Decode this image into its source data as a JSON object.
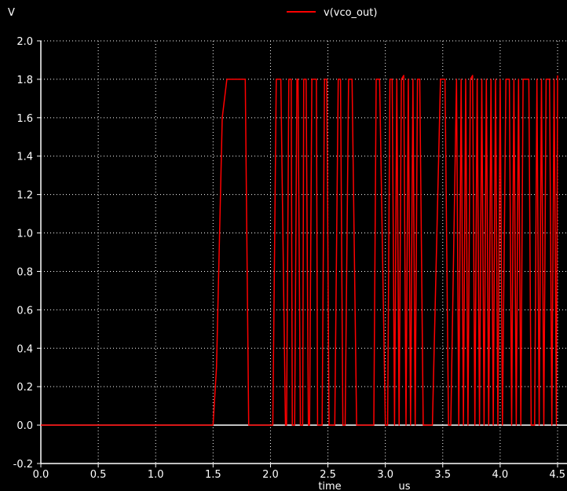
{
  "chart_data": {
    "type": "line",
    "y_unit": "V",
    "xlabel": "time",
    "x_unit": "us",
    "xlim": [
      0.0,
      4.5
    ],
    "ylim": [
      -0.2,
      2.0
    ],
    "x_ticks": [
      "0.0",
      "0.5",
      "1.0",
      "1.5",
      "2.0",
      "2.5",
      "3.0",
      "3.5",
      "4.0",
      "4.5"
    ],
    "y_ticks": [
      "-0.2",
      "0.0",
      "0.2",
      "0.4",
      "0.6",
      "0.8",
      "1.0",
      "1.2",
      "1.4",
      "1.6",
      "1.8",
      "2.0"
    ],
    "grid": true,
    "legend_position": "top-center",
    "colors": {
      "background": "#000000",
      "series": "#ff0000",
      "grid": "#ffffff",
      "axis": "#ffffff"
    },
    "series": [
      {
        "name": "v(vco_out)",
        "x": [
          0.0,
          1.5,
          1.53,
          1.58,
          1.62,
          1.65,
          1.78,
          1.81,
          1.84,
          1.85,
          1.88,
          1.95,
          2.02,
          2.05,
          2.06,
          2.09,
          2.13,
          2.14,
          2.16,
          2.18,
          2.19,
          2.21,
          2.23,
          2.24,
          2.26,
          2.28,
          2.29,
          2.31,
          2.33,
          2.34,
          2.36,
          2.4,
          2.41,
          2.45,
          2.47,
          2.49,
          2.51,
          2.53,
          2.56,
          2.59,
          2.61,
          2.63,
          2.65,
          2.68,
          2.71,
          2.75,
          2.77,
          2.8,
          2.9,
          2.92,
          2.95,
          3.0,
          3.02,
          3.04,
          3.06,
          3.08,
          3.1,
          3.12,
          3.14,
          3.16,
          3.18,
          3.2,
          3.22,
          3.24,
          3.26,
          3.28,
          3.3,
          3.33,
          3.35,
          3.37,
          3.39,
          3.41,
          3.48,
          3.5,
          3.52,
          3.55,
          3.57,
          3.62,
          3.64,
          3.66,
          3.68,
          3.7,
          3.72,
          3.74,
          3.76,
          3.78,
          3.8,
          3.82,
          3.84,
          3.86,
          3.88,
          3.9,
          3.92,
          3.94,
          3.96,
          3.98,
          4.0,
          4.02,
          4.05,
          4.08,
          4.1,
          4.12,
          4.14,
          4.16,
          4.18,
          4.2,
          4.25,
          4.27,
          4.3,
          4.32,
          4.34,
          4.36,
          4.38,
          4.4,
          4.43,
          4.45,
          4.47,
          4.49,
          4.5
        ],
        "y": [
          0.0,
          0.0,
          0.3,
          1.6,
          1.8,
          1.8,
          1.8,
          0.0,
          0.0,
          0.0,
          0.0,
          0.0,
          0.0,
          1.8,
          1.8,
          1.8,
          0.0,
          0.0,
          1.8,
          1.8,
          0.0,
          0.0,
          1.8,
          1.8,
          0.0,
          0.0,
          1.8,
          1.8,
          0.0,
          0.0,
          1.8,
          1.8,
          0.0,
          0.0,
          1.8,
          1.8,
          0.0,
          0.0,
          0.0,
          1.8,
          1.8,
          0.0,
          0.0,
          1.8,
          1.8,
          0.0,
          0.0,
          0.0,
          0.0,
          1.8,
          1.8,
          0.0,
          0.0,
          1.8,
          1.8,
          0.0,
          1.8,
          0.0,
          1.8,
          1.82,
          0.0,
          1.8,
          0.0,
          1.8,
          0.0,
          1.8,
          1.8,
          0.0,
          0.0,
          0.0,
          0.0,
          0.0,
          1.8,
          1.8,
          1.8,
          0.0,
          0.0,
          1.8,
          0.0,
          1.8,
          0.0,
          1.8,
          0.0,
          1.8,
          1.82,
          0.0,
          1.8,
          0.0,
          1.8,
          0.0,
          1.8,
          0.0,
          1.8,
          0.0,
          1.8,
          0.0,
          1.8,
          0.0,
          1.8,
          1.8,
          0.0,
          1.8,
          0.0,
          1.8,
          0.0,
          1.8,
          1.8,
          0.0,
          0.0,
          1.8,
          0.0,
          1.8,
          0.0,
          1.8,
          1.8,
          0.0,
          1.8,
          0.0,
          1.82
        ]
      }
    ]
  }
}
